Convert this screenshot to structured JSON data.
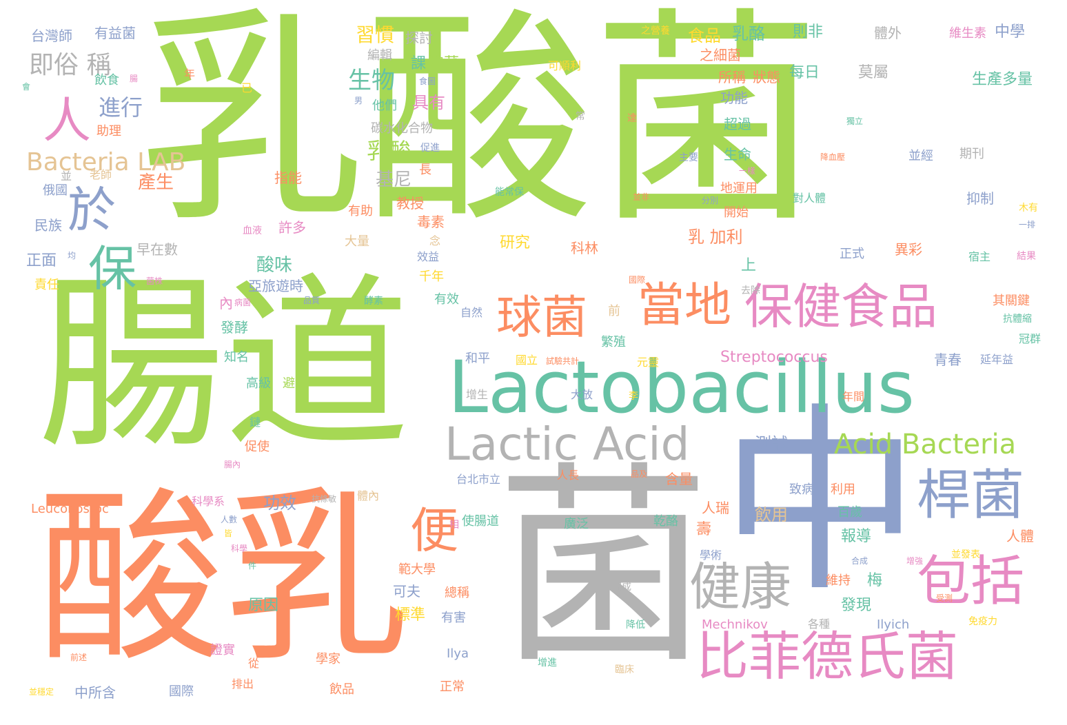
{
  "palette": {
    "green": "#a6d854",
    "orange": "#fc8d62",
    "teal": "#66c2a5",
    "blue": "#8da0cb",
    "gray": "#b3b3b3",
    "pink": "#e78ac3",
    "yellow": "#ffd92f",
    "tan": "#e5c494"
  },
  "words": [
    {
      "text": "乳酸菌",
      "color": "green"
    },
    {
      "text": "腸道",
      "color": "green"
    },
    {
      "text": "酸乳",
      "color": "orange"
    },
    {
      "text": "菌",
      "color": "gray"
    },
    {
      "text": "中",
      "color": "blue"
    },
    {
      "text": "Lactobacillus",
      "color": "teal"
    },
    {
      "text": "Lactic Acid",
      "color": "gray"
    },
    {
      "text": "比菲德氏菌",
      "color": "pink"
    },
    {
      "text": "保健食品",
      "color": "pink"
    },
    {
      "text": "當地",
      "color": "orange"
    },
    {
      "text": "球菌",
      "color": "orange"
    },
    {
      "text": "桿菌",
      "color": "blue"
    },
    {
      "text": "包括",
      "color": "pink"
    },
    {
      "text": "健康",
      "color": "gray"
    },
    {
      "text": "Acid Bacteria",
      "color": "green"
    },
    {
      "text": "便",
      "color": "orange"
    },
    {
      "text": "於",
      "color": "blue"
    },
    {
      "text": "保",
      "color": "teal"
    },
    {
      "text": "人",
      "color": "pink"
    },
    {
      "text": "Bacteria LAB",
      "color": "tan"
    },
    {
      "text": "即俗 稱",
      "color": "gray"
    },
    {
      "text": "進行",
      "color": "blue"
    },
    {
      "text": "生物",
      "color": "teal"
    },
    {
      "text": "乳酸",
      "color": "green"
    },
    {
      "text": "習慣",
      "color": "yellow"
    },
    {
      "text": "食品",
      "color": "yellow"
    },
    {
      "text": "乳酪",
      "color": "teal"
    },
    {
      "text": "則非",
      "color": "teal"
    },
    {
      "text": "中學",
      "color": "blue"
    },
    {
      "text": "維生素",
      "color": "pink"
    },
    {
      "text": "體外",
      "color": "gray"
    },
    {
      "text": "之營養",
      "color": "yellow"
    },
    {
      "text": "台灣師",
      "color": "blue"
    },
    {
      "text": "有益菌",
      "color": "blue"
    },
    {
      "text": "探討",
      "color": "gray"
    },
    {
      "text": "編輯",
      "color": "gray"
    },
    {
      "text": "課",
      "color": "teal"
    },
    {
      "text": "泡菜",
      "color": "green"
    },
    {
      "text": "每日",
      "color": "teal"
    },
    {
      "text": "莫屬",
      "color": "gray"
    },
    {
      "text": "生產多量",
      "color": "teal"
    },
    {
      "text": "所稱",
      "color": "orange"
    },
    {
      "text": "狀態",
      "color": "orange"
    },
    {
      "text": "之細菌",
      "color": "orange"
    },
    {
      "text": "可順利",
      "color": "yellow"
    },
    {
      "text": "功能",
      "color": "blue"
    },
    {
      "text": "超過",
      "color": "teal"
    },
    {
      "text": "生命",
      "color": "teal"
    },
    {
      "text": "具有",
      "color": "pink"
    },
    {
      "text": "他們",
      "color": "teal"
    },
    {
      "text": "飲食",
      "color": "teal"
    },
    {
      "text": "碳水化合物",
      "color": "gray"
    },
    {
      "text": "助理",
      "color": "orange"
    },
    {
      "text": "基尼",
      "color": "gray"
    },
    {
      "text": "產生",
      "color": "orange"
    },
    {
      "text": "指能",
      "color": "orange"
    },
    {
      "text": "老師",
      "color": "tan"
    },
    {
      "text": "俄國",
      "color": "blue"
    },
    {
      "text": "民族",
      "color": "blue"
    },
    {
      "text": "正面",
      "color": "blue"
    },
    {
      "text": "責任",
      "color": "yellow"
    },
    {
      "text": "早在數",
      "color": "gray"
    },
    {
      "text": "許多",
      "color": "pink"
    },
    {
      "text": "酸味",
      "color": "teal"
    },
    {
      "text": "亞旅遊時",
      "color": "blue"
    },
    {
      "text": "教授",
      "color": "orange"
    },
    {
      "text": "有助",
      "color": "orange"
    },
    {
      "text": "毒素",
      "color": "orange"
    },
    {
      "text": "大量",
      "color": "tan"
    },
    {
      "text": "研究",
      "color": "yellow"
    },
    {
      "text": "科林",
      "color": "orange"
    },
    {
      "text": "效益",
      "color": "blue"
    },
    {
      "text": "千年",
      "color": "yellow"
    },
    {
      "text": "有效",
      "color": "teal"
    },
    {
      "text": "自然",
      "color": "blue"
    },
    {
      "text": "內",
      "color": "pink"
    },
    {
      "text": "發酵",
      "color": "teal"
    },
    {
      "text": "知名",
      "color": "teal"
    },
    {
      "text": "高級",
      "color": "teal"
    },
    {
      "text": "避免",
      "color": "green"
    },
    {
      "text": "和平",
      "color": "blue"
    },
    {
      "text": "國立",
      "color": "yellow"
    },
    {
      "text": "試驗共計",
      "color": "orange"
    },
    {
      "text": "元靈",
      "color": "yellow"
    },
    {
      "text": "繁殖",
      "color": "teal"
    },
    {
      "text": "前",
      "color": "tan"
    },
    {
      "text": "Streptococcus",
      "color": "pink"
    },
    {
      "text": "青春",
      "color": "blue"
    },
    {
      "text": "延年益",
      "color": "blue"
    },
    {
      "text": "冠群",
      "color": "teal"
    },
    {
      "text": "其關鍵",
      "color": "orange"
    },
    {
      "text": "抗體縮",
      "color": "teal"
    },
    {
      "text": "增生",
      "color": "gray"
    },
    {
      "text": "大放",
      "color": "blue"
    },
    {
      "text": "李",
      "color": "yellow"
    },
    {
      "text": "年間",
      "color": "orange"
    },
    {
      "text": "測試",
      "color": "blue"
    },
    {
      "text": "台北市立",
      "color": "blue"
    },
    {
      "text": "人長",
      "color": "orange"
    },
    {
      "text": "含量",
      "color": "orange"
    },
    {
      "text": "功效",
      "color": "blue"
    },
    {
      "text": "體內",
      "color": "tan"
    },
    {
      "text": "科學系",
      "color": "pink"
    },
    {
      "text": "促使",
      "color": "orange"
    },
    {
      "text": "腸內",
      "color": "pink"
    },
    {
      "text": "Leuconostoc",
      "color": "orange"
    },
    {
      "text": "使腸道",
      "color": "teal"
    },
    {
      "text": "廣泛",
      "color": "teal"
    },
    {
      "text": "乾酪",
      "color": "teal"
    },
    {
      "text": "人瑞",
      "color": "orange"
    },
    {
      "text": "飲用",
      "color": "tan"
    },
    {
      "text": "致病",
      "color": "blue"
    },
    {
      "text": "利用",
      "color": "orange"
    },
    {
      "text": "百歲",
      "color": "teal"
    },
    {
      "text": "報導",
      "color": "teal"
    },
    {
      "text": "人體",
      "color": "orange"
    },
    {
      "text": "範大學",
      "color": "orange"
    },
    {
      "text": "可夫",
      "color": "blue"
    },
    {
      "text": "原因",
      "color": "teal"
    },
    {
      "text": "標準",
      "color": "yellow"
    },
    {
      "text": "有害",
      "color": "blue"
    },
    {
      "text": "總稱",
      "color": "orange"
    },
    {
      "text": "梅",
      "color": "teal"
    },
    {
      "text": "維持",
      "color": "orange"
    },
    {
      "text": "發現",
      "color": "teal"
    },
    {
      "text": "學術",
      "color": "blue"
    },
    {
      "text": "並發表",
      "color": "yellow"
    },
    {
      "text": "Mechnikov",
      "color": "pink"
    },
    {
      "text": "各種",
      "color": "gray"
    },
    {
      "text": "Ilyich",
      "color": "blue"
    },
    {
      "text": "免疫力",
      "color": "yellow"
    },
    {
      "text": "Ilya",
      "color": "blue"
    },
    {
      "text": "學家",
      "color": "orange"
    },
    {
      "text": "飲品",
      "color": "orange"
    },
    {
      "text": "正常",
      "color": "orange"
    },
    {
      "text": "證實",
      "color": "pink"
    },
    {
      "text": "從",
      "color": "orange"
    },
    {
      "text": "排出",
      "color": "orange"
    },
    {
      "text": "國際",
      "color": "blue"
    },
    {
      "text": "中所含",
      "color": "blue"
    },
    {
      "text": "並穩定",
      "color": "yellow"
    },
    {
      "text": "臨床",
      "color": "tan"
    },
    {
      "text": "降低",
      "color": "teal"
    },
    {
      "text": "完成",
      "color": "gray"
    },
    {
      "text": "增進",
      "color": "teal"
    },
    {
      "text": "乳 加利",
      "color": "orange"
    },
    {
      "text": "上",
      "color": "teal"
    },
    {
      "text": "開始",
      "color": "orange"
    },
    {
      "text": "地運用",
      "color": "orange"
    },
    {
      "text": "對人體",
      "color": "teal"
    },
    {
      "text": "抑制",
      "color": "blue"
    },
    {
      "text": "異彩",
      "color": "orange"
    },
    {
      "text": "正式",
      "color": "blue"
    },
    {
      "text": "宿主",
      "color": "teal"
    },
    {
      "text": "結果",
      "color": "pink"
    },
    {
      "text": "期刊",
      "color": "gray"
    },
    {
      "text": "並經",
      "color": "blue"
    },
    {
      "text": "一樣",
      "color": "pink"
    },
    {
      "text": "分別",
      "color": "blue"
    },
    {
      "text": "能常保",
      "color": "teal"
    },
    {
      "text": "主要",
      "color": "blue"
    },
    {
      "text": "木有",
      "color": "yellow"
    },
    {
      "text": "一排",
      "color": "blue"
    },
    {
      "text": "去除",
      "color": "gray"
    },
    {
      "text": "國際",
      "color": "orange"
    },
    {
      "text": "品質",
      "color": "blue"
    },
    {
      "text": "酵素",
      "color": "teal"
    },
    {
      "text": "血液",
      "color": "pink"
    },
    {
      "text": "抗條敏",
      "color": "gray"
    },
    {
      "text": "病菌",
      "color": "pink"
    },
    {
      "text": "念",
      "color": "tan"
    },
    {
      "text": "長",
      "color": "orange"
    },
    {
      "text": "促進",
      "color": "blue"
    },
    {
      "text": "食圖",
      "color": "blue"
    },
    {
      "text": "並",
      "color": "gray"
    },
    {
      "text": "年",
      "color": "orange"
    },
    {
      "text": "已",
      "color": "yellow"
    },
    {
      "text": "會",
      "color": "teal"
    },
    {
      "text": "腸",
      "color": "pink"
    },
    {
      "text": "常",
      "color": "gray"
    },
    {
      "text": "達",
      "color": "orange"
    },
    {
      "text": "均",
      "color": "blue"
    },
    {
      "text": "菌株",
      "color": "pink"
    },
    {
      "text": "並非",
      "color": "orange"
    },
    {
      "text": "降血壓",
      "color": "orange"
    },
    {
      "text": "獨立",
      "color": "teal"
    },
    {
      "text": "鏈",
      "color": "teal"
    },
    {
      "text": "人數",
      "color": "blue"
    },
    {
      "text": "皆",
      "color": "yellow"
    },
    {
      "text": "科學",
      "color": "pink"
    },
    {
      "text": "件",
      "color": "teal"
    },
    {
      "text": "相",
      "color": "pink"
    },
    {
      "text": "合成",
      "color": "blue"
    },
    {
      "text": "增強",
      "color": "pink"
    },
    {
      "text": "品及",
      "color": "orange"
    },
    {
      "text": "受測",
      "color": "orange"
    },
    {
      "text": "前述",
      "color": "orange"
    },
    {
      "text": "壽",
      "color": "orange"
    },
    {
      "text": "男",
      "color": "blue"
    }
  ]
}
